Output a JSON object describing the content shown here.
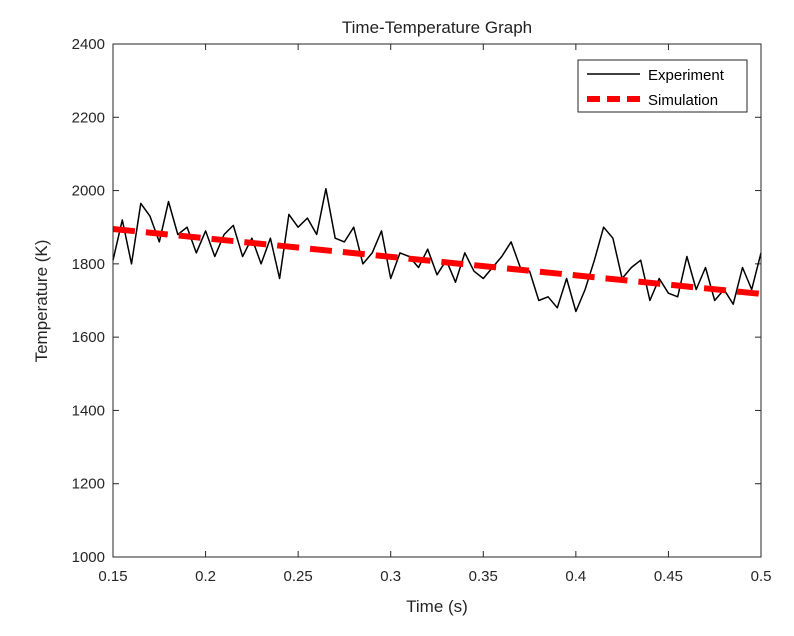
{
  "chart_data": {
    "type": "line",
    "title": "Time-Temperature Graph",
    "xlabel": "Time (s)",
    "ylabel": "Temperature (K)",
    "xlim": [
      0.15,
      0.5
    ],
    "ylim": [
      1000,
      2400
    ],
    "xticks": [
      0.15,
      0.2,
      0.25,
      0.3,
      0.35,
      0.4,
      0.45,
      0.5
    ],
    "xtick_labels": [
      "0.15",
      "0.2",
      "0.25",
      "0.3",
      "0.35",
      "0.4",
      "0.45",
      "0.5"
    ],
    "yticks": [
      1000,
      1200,
      1400,
      1600,
      1800,
      2000,
      2200,
      2400
    ],
    "ytick_labels": [
      "1000",
      "1200",
      "1400",
      "1600",
      "1800",
      "2000",
      "2200",
      "2400"
    ],
    "grid": false,
    "legend_position": "top-right",
    "series": [
      {
        "name": "Experiment",
        "color": "#000000",
        "style": "solid",
        "x": [
          0.15,
          0.155,
          0.16,
          0.165,
          0.17,
          0.175,
          0.18,
          0.185,
          0.19,
          0.195,
          0.2,
          0.205,
          0.21,
          0.215,
          0.22,
          0.225,
          0.23,
          0.235,
          0.24,
          0.245,
          0.25,
          0.255,
          0.26,
          0.265,
          0.27,
          0.275,
          0.28,
          0.285,
          0.29,
          0.295,
          0.3,
          0.305,
          0.31,
          0.315,
          0.32,
          0.325,
          0.33,
          0.335,
          0.34,
          0.345,
          0.35,
          0.355,
          0.36,
          0.365,
          0.37,
          0.375,
          0.38,
          0.385,
          0.39,
          0.395,
          0.4,
          0.405,
          0.41,
          0.415,
          0.42,
          0.425,
          0.43,
          0.435,
          0.44,
          0.445,
          0.45,
          0.455,
          0.46,
          0.465,
          0.47,
          0.475,
          0.48,
          0.485,
          0.49,
          0.495,
          0.5
        ],
        "y": [
          1810,
          1920,
          1800,
          1965,
          1930,
          1860,
          1970,
          1880,
          1900,
          1830,
          1890,
          1820,
          1880,
          1905,
          1820,
          1870,
          1800,
          1870,
          1760,
          1935,
          1900,
          1925,
          1880,
          2005,
          1870,
          1860,
          1900,
          1800,
          1830,
          1890,
          1760,
          1830,
          1820,
          1790,
          1840,
          1770,
          1810,
          1750,
          1830,
          1780,
          1760,
          1790,
          1820,
          1860,
          1790,
          1780,
          1700,
          1710,
          1680,
          1760,
          1670,
          1730,
          1810,
          1900,
          1870,
          1760,
          1790,
          1810,
          1700,
          1760,
          1720,
          1710,
          1820,
          1730,
          1790,
          1700,
          1730,
          1690,
          1790,
          1730,
          1830
        ]
      },
      {
        "name": "Simulation",
        "color": "#ff0000",
        "style": "dashed",
        "x": [
          0.15,
          0.5
        ],
        "y": [
          1895,
          1718
        ]
      }
    ]
  }
}
